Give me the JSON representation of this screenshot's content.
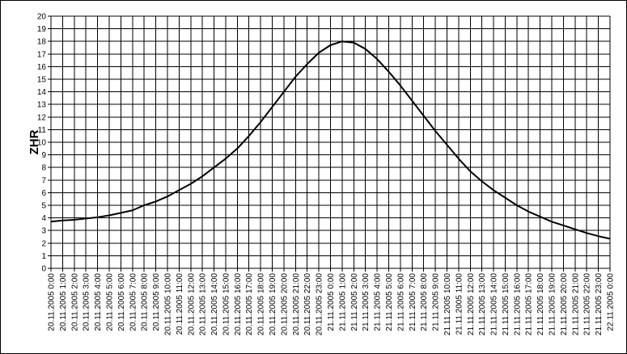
{
  "chart_data": {
    "type": "line",
    "y_label": "ZHR",
    "categories": [
      "20.11.2005 0:00",
      "20.11.2005 1:00",
      "20.11.2005 2:00",
      "20.11.2005 3:00",
      "20.11.2005 4:00",
      "20.11.2005 5:00",
      "20.11.2005 6:00",
      "20.11.2005 7:00",
      "20.11.2005 8:00",
      "20.11.2005 9:00",
      "20.11.2005 10:00",
      "20.11.2005 11:00",
      "20.11.2005 12:00",
      "20.11.2005 13:00",
      "20.11.2005 14:00",
      "20.11.2005 15:00",
      "20.11.2005 16:00",
      "20.11.2005 17:00",
      "20.11.2005 18:00",
      "20.11.2005 19:00",
      "20.11.2005 20:00",
      "20.11.2005 21:00",
      "20.11.2005 22:00",
      "20.11.2005 23:00",
      "21.11.2005 0:00",
      "21.11.2005 1:00",
      "21.11.2005 2:00",
      "21.11.2005 3:00",
      "21.11.2005 4:00",
      "21.11.2005 5:00",
      "21.11.2005 6:00",
      "21.11.2005 7:00",
      "21.11.2005 8:00",
      "21.11.2005 9:00",
      "21.11.2005 10:00",
      "21.11.2005 11:00",
      "21.11.2005 12:00",
      "21.11.2005 13:00",
      "21.11.2005 14:00",
      "21.11.2005 15:00",
      "21.11.2005 16:00",
      "21.11.2005 17:00",
      "21.11.2005 18:00",
      "21.11.2005 19:00",
      "21.11.2005 20:00",
      "21.11.2005 21:00",
      "21.11.2005 22:00",
      "21.11.2005 23:00",
      "22.11.2005 0:00"
    ],
    "values": [
      3.7,
      3.8,
      3.85,
      3.95,
      4.05,
      4.2,
      4.4,
      4.6,
      5.0,
      5.3,
      5.7,
      6.2,
      6.7,
      7.3,
      8.0,
      8.7,
      9.5,
      10.5,
      11.6,
      12.8,
      14.0,
      15.2,
      16.2,
      17.1,
      17.7,
      18.0,
      17.9,
      17.4,
      16.6,
      15.6,
      14.5,
      13.3,
      12.1,
      10.9,
      9.8,
      8.7,
      7.7,
      6.9,
      6.2,
      5.6,
      5.0,
      4.5,
      4.1,
      3.7,
      3.4,
      3.1,
      2.8,
      2.55,
      2.35
    ],
    "color": "#000000",
    "ylim": [
      0,
      20
    ],
    "yticks": [
      0,
      1,
      2,
      3,
      4,
      5,
      6,
      7,
      8,
      9,
      10,
      11,
      12,
      13,
      14,
      15,
      16,
      17,
      18,
      19,
      20
    ],
    "grid": true
  }
}
